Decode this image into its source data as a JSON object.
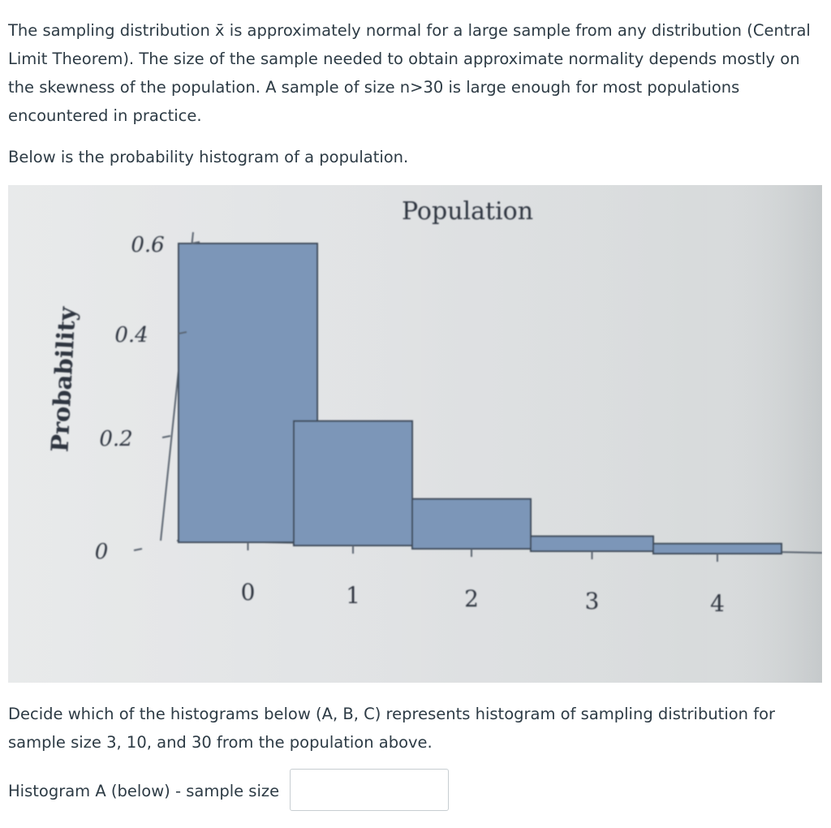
{
  "question": {
    "intro": "The sampling distribution x̄ is approximately normal for a large sample from any distribution (Central Limit Theorem). The size of the  sample needed to obtain approximate normality depends mostly on the skewness of the population. A sample of size n>30 is large enough for most populations encountered in practice.",
    "histogram_caption": "Below is the probability histogram of a population.",
    "prompt": "Decide which of the histograms below (A, B, C) represents histogram of sampling distribution for sample size 3, 10, and 30 from the population above.",
    "answer_label": "Histogram A (below) - sample size",
    "answer_value": ""
  },
  "chart_data": {
    "type": "bar",
    "title": "Population",
    "ylabel": "Probability",
    "xlabel": "",
    "categories": [
      "0",
      "1",
      "2",
      "3",
      "4"
    ],
    "values": [
      0.6,
      0.25,
      0.1,
      0.03,
      0.02
    ],
    "yticks": [
      "0",
      "0.2",
      "0.4",
      "0.6"
    ],
    "ylim": [
      0,
      0.6
    ],
    "bar_color": "#7b96b8"
  }
}
